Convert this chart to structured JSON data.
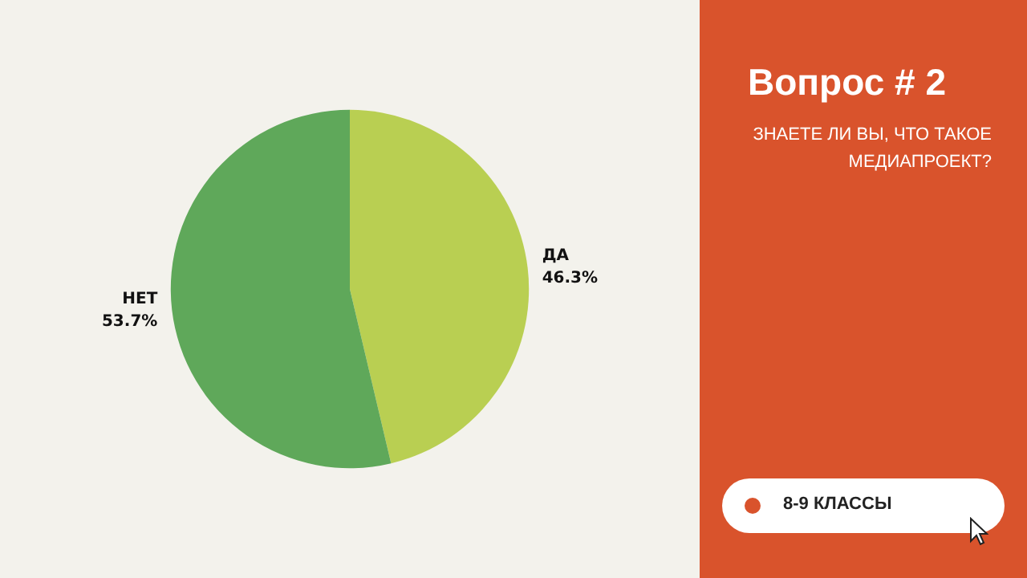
{
  "chart_data": {
    "type": "pie",
    "title": "Вопрос # 2",
    "subtitle": "ЗНАЕТЕ ЛИ ВЫ, ЧТО ТАКОЕ МЕДИАПРОЕКТ?",
    "categories": [
      "ДА",
      "НЕТ"
    ],
    "values": [
      46.3,
      53.7
    ],
    "colors": [
      "#b9cf52",
      "#5fa85a"
    ],
    "value_labels": [
      "46.3%",
      "53.7%"
    ],
    "legend": false,
    "annotations": [
      "8-9 КЛАССЫ"
    ]
  }
}
